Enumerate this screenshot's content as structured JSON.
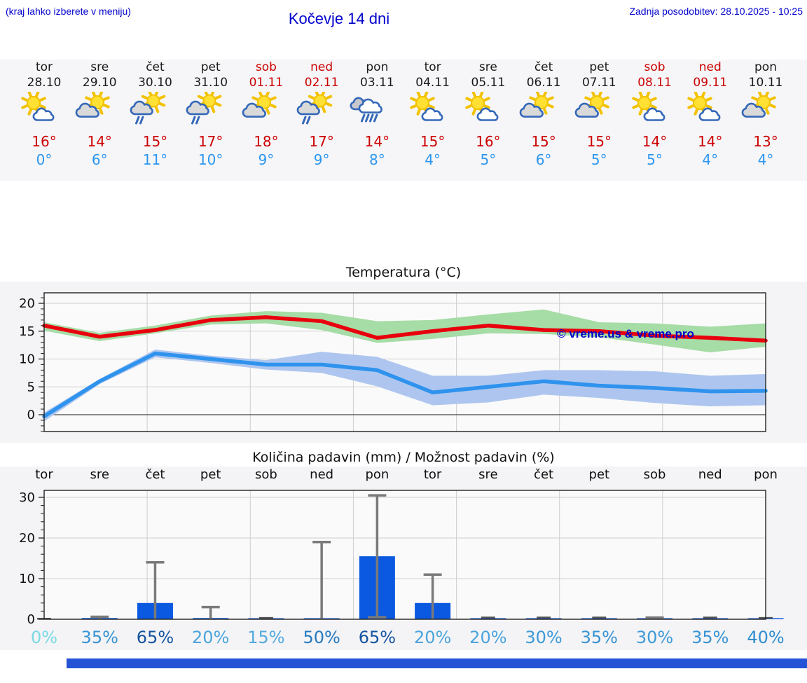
{
  "header": {
    "hint": "(kraj lahko izberete v meniju)",
    "title": "Kočevje 14 dni",
    "updated": "Zadnja posodobitev: 28.10.2025 - 10:25"
  },
  "colors": {
    "link_blue": "#0000cc",
    "high_red": "#cc0000",
    "low_blue": "#2b96f0",
    "weekend_red": "#cc0000",
    "strip_bg": "#f6f6f8",
    "plot_bg": "#fafafa"
  },
  "days": [
    {
      "name": "tor",
      "date": "28.10",
      "weekend": false,
      "icon": "sun-cloud",
      "high": "16°",
      "low": "0°"
    },
    {
      "name": "sre",
      "date": "29.10",
      "weekend": false,
      "icon": "cloud-sun",
      "high": "14°",
      "low": "6°"
    },
    {
      "name": "čet",
      "date": "30.10",
      "weekend": false,
      "icon": "sun-rain",
      "high": "15°",
      "low": "11°"
    },
    {
      "name": "pet",
      "date": "31.10",
      "weekend": false,
      "icon": "sun-rain",
      "high": "17°",
      "low": "10°"
    },
    {
      "name": "sob",
      "date": "01.11",
      "weekend": true,
      "icon": "cloud-sun",
      "high": "18°",
      "low": "9°"
    },
    {
      "name": "ned",
      "date": "02.11",
      "weekend": true,
      "icon": "sun-rain",
      "high": "17°",
      "low": "9°"
    },
    {
      "name": "pon",
      "date": "03.11",
      "weekend": false,
      "icon": "rain",
      "high": "14°",
      "low": "8°"
    },
    {
      "name": "tor",
      "date": "04.11",
      "weekend": false,
      "icon": "sun-cloud",
      "high": "15°",
      "low": "4°"
    },
    {
      "name": "sre",
      "date": "05.11",
      "weekend": false,
      "icon": "sun-cloud",
      "high": "16°",
      "low": "5°"
    },
    {
      "name": "čet",
      "date": "06.11",
      "weekend": false,
      "icon": "cloud-sun",
      "high": "15°",
      "low": "6°"
    },
    {
      "name": "pet",
      "date": "07.11",
      "weekend": false,
      "icon": "cloud-sun",
      "high": "15°",
      "low": "5°"
    },
    {
      "name": "sob",
      "date": "08.11",
      "weekend": true,
      "icon": "sun-cloud",
      "high": "14°",
      "low": "5°"
    },
    {
      "name": "ned",
      "date": "09.11",
      "weekend": true,
      "icon": "sun-cloud",
      "high": "14°",
      "low": "4°"
    },
    {
      "name": "pon",
      "date": "10.11",
      "weekend": false,
      "icon": "cloud-sun",
      "high": "13°",
      "low": "4°"
    }
  ],
  "chart_data": [
    {
      "type": "line",
      "title": "Temperatura (°C)",
      "watermark": "© vreme.us & vreme.pro",
      "categories": [
        "28.10",
        "29.10",
        "30.10",
        "31.10",
        "01.11",
        "02.11",
        "03.11",
        "04.11",
        "05.11",
        "06.11",
        "07.11",
        "08.11",
        "09.11",
        "10.11"
      ],
      "ylim": [
        -3,
        22
      ],
      "yticks": [
        0,
        5,
        10,
        15,
        20
      ],
      "grid": true,
      "series": [
        {
          "name": "max temperature",
          "color": "#e8000d",
          "values": [
            16,
            14,
            15.2,
            17,
            17.5,
            16.8,
            13.8,
            15,
            16,
            15.2,
            15,
            14.2,
            13.8,
            13.3
          ]
        },
        {
          "name": "min temperature",
          "color": "#2f93ee",
          "values": [
            -0.3,
            6,
            11,
            10,
            9,
            9,
            8,
            4,
            5,
            6,
            5.2,
            4.8,
            4.2,
            4.3
          ]
        }
      ],
      "bands": [
        {
          "series": "max temperature",
          "color": "#a6dca6",
          "top": [
            16.6,
            14.7,
            16,
            17.8,
            18.6,
            18.3,
            16.8,
            17,
            18,
            18.9,
            16.6,
            16.4,
            15.8,
            16.4
          ],
          "bottom": [
            15.1,
            13.2,
            14.6,
            16.2,
            16.4,
            15.2,
            12.9,
            13.6,
            14.6,
            14.5,
            13.9,
            12.6,
            11.2,
            12.2
          ]
        },
        {
          "series": "min temperature",
          "color": "#aec6ef",
          "top": [
            0.4,
            6.4,
            11.7,
            10.6,
            9.8,
            11.3,
            10.4,
            7,
            7,
            8,
            8,
            7.8,
            7,
            7.3
          ],
          "bottom": [
            -1.2,
            5.5,
            10.3,
            9.3,
            8.1,
            7.5,
            5.1,
            1.7,
            2.2,
            3.6,
            3,
            2.1,
            1.5,
            1.7
          ]
        }
      ]
    },
    {
      "type": "bar",
      "title": "Količina padavin (mm) / Možnost padavin (%)",
      "categories": [
        "tor",
        "sre",
        "čet",
        "pet",
        "sob",
        "ned",
        "pon",
        "tor",
        "sre",
        "čet",
        "pet",
        "sob",
        "ned",
        "pon"
      ],
      "values": [
        0,
        0.3,
        4,
        0.3,
        0.1,
        0.1,
        15.5,
        4,
        0.15,
        0.15,
        0.15,
        0.2,
        0.15,
        0.1
      ],
      "whisker_high": [
        0,
        0.6,
        14,
        3,
        0.2,
        19,
        30.5,
        11,
        0.3,
        0.3,
        0.3,
        0.4,
        0.3,
        0.2
      ],
      "whisker_low": [
        0,
        0,
        0,
        0,
        0,
        0,
        0.5,
        0,
        0,
        0,
        0,
        0,
        0,
        0
      ],
      "probabilities": [
        "0%",
        "35%",
        "65%",
        "20%",
        "15%",
        "50%",
        "65%",
        "20%",
        "20%",
        "30%",
        "35%",
        "30%",
        "35%",
        "40%"
      ],
      "prob_colors": [
        "#7ad8e4",
        "#3793d3",
        "#15539f",
        "#4ba4dc",
        "#53aade",
        "#2579bf",
        "#15539f",
        "#4ba4dc",
        "#4ba4dc",
        "#3e99d7",
        "#3793d3",
        "#3e99d7",
        "#3793d3",
        "#308cce"
      ],
      "bar_color": "#0b59e0",
      "whisker_color": "#7a7a7a",
      "ylim": [
        0,
        32
      ],
      "yticks": [
        0,
        10,
        20,
        30
      ],
      "grid": true
    }
  ]
}
